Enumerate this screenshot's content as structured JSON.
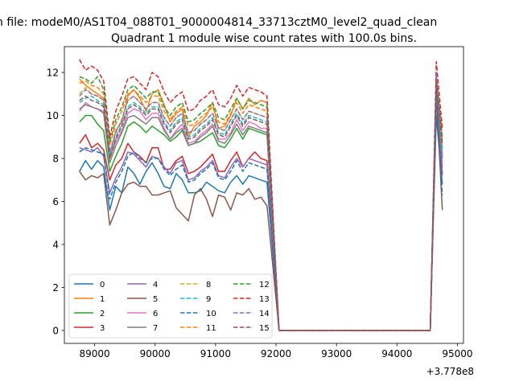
{
  "figure": {
    "suptitle": "n file: modeM0/AS1T04_088T01_9000004814_33713cztM0_level2_quad_clean",
    "offset_label": "+3.778e8"
  },
  "chart_data": {
    "type": "line",
    "title": "Quadrant 1 module wise count rates with 100.0s bins.",
    "xlabel": "",
    "ylabel": "",
    "xlim": [
      88500,
      95100
    ],
    "ylim": [
      -0.6,
      13.2
    ],
    "xticks": [
      89000,
      90000,
      91000,
      92000,
      93000,
      94000,
      95000
    ],
    "yticks": [
      0,
      2,
      4,
      6,
      8,
      10,
      12
    ],
    "grid": false,
    "legend_location": "lower-left",
    "legend_columns": 4,
    "x": [
      88750,
      88850,
      88950,
      89050,
      89150,
      89250,
      89350,
      89450,
      89550,
      89650,
      89750,
      89850,
      89950,
      90050,
      90150,
      90250,
      90350,
      90450,
      90550,
      90650,
      90750,
      90850,
      90950,
      91050,
      91150,
      91250,
      91350,
      91450,
      91550,
      91650,
      91750,
      91850,
      91950,
      92050,
      92150,
      92250,
      92350,
      92450,
      92550,
      92650,
      92750,
      92850,
      92950,
      93050,
      93150,
      93250,
      93350,
      93450,
      93550,
      93650,
      93750,
      93850,
      93950,
      94050,
      94150,
      94250,
      94350,
      94450,
      94550,
      94650,
      94750
    ],
    "series": [
      {
        "name": "0",
        "color": "#1f77b4",
        "dash": "solid",
        "values": [
          7.4,
          7.9,
          7.5,
          7.9,
          7.6,
          5.6,
          6.7,
          6.4,
          7.6,
          7.3,
          6.8,
          7.4,
          7.8,
          7.3,
          6.7,
          6.6,
          7.3,
          7.0,
          6.4,
          6.4,
          6.5,
          6.9,
          6.7,
          6.5,
          6.4,
          6.9,
          7.2,
          6.8,
          7.2,
          7.1,
          7.0,
          6.9,
          3.5,
          0,
          0,
          0,
          0,
          0,
          0,
          0,
          0,
          0,
          0,
          0,
          0,
          0,
          0,
          0,
          0,
          0,
          0,
          0,
          0,
          0,
          0,
          0,
          0,
          0,
          0,
          10.0,
          6.8
        ]
      },
      {
        "name": "1",
        "color": "#ff7f0e",
        "dash": "solid",
        "values": [
          11.7,
          11.4,
          11.2,
          11.0,
          10.8,
          8.2,
          9.3,
          9.7,
          10.9,
          11.2,
          10.8,
          10.2,
          11.0,
          11.2,
          10.5,
          9.7,
          10.1,
          10.3,
          9.0,
          9.5,
          9.7,
          10.0,
          10.6,
          9.4,
          9.5,
          10.0,
          10.8,
          10.3,
          10.8,
          10.5,
          10.7,
          10.6,
          5.0,
          0,
          0,
          0,
          0,
          0,
          0,
          0,
          0,
          0,
          0,
          0,
          0,
          0,
          0,
          0,
          0,
          0,
          0,
          0,
          0,
          0,
          0,
          0,
          0,
          0,
          0,
          11.6,
          8.5
        ]
      },
      {
        "name": "2",
        "color": "#2ca02c",
        "dash": "solid",
        "values": [
          9.7,
          10.0,
          10.0,
          9.6,
          9.3,
          7.4,
          8.1,
          8.7,
          9.5,
          9.7,
          9.5,
          9.2,
          9.5,
          9.3,
          9.1,
          8.8,
          9.0,
          9.3,
          8.6,
          8.7,
          8.8,
          9.0,
          9.2,
          8.6,
          8.5,
          8.9,
          9.4,
          8.9,
          9.4,
          9.3,
          9.2,
          9.1,
          4.5,
          0,
          0,
          0,
          0,
          0,
          0,
          0,
          0,
          0,
          0,
          0,
          0,
          0,
          0,
          0,
          0,
          0,
          0,
          0,
          0,
          0,
          0,
          0,
          0,
          0,
          0,
          11.2,
          8.0
        ]
      },
      {
        "name": "3",
        "color": "#d62728",
        "dash": "solid",
        "values": [
          8.7,
          9.1,
          8.5,
          8.7,
          8.4,
          7.0,
          7.7,
          8.0,
          8.7,
          8.3,
          8.1,
          7.8,
          8.5,
          8.5,
          7.5,
          7.5,
          7.9,
          8.1,
          7.3,
          7.4,
          7.6,
          7.9,
          8.2,
          7.4,
          7.4,
          7.9,
          8.3,
          7.6,
          8.0,
          8.3,
          8.0,
          7.9,
          3.9,
          0,
          0,
          0,
          0,
          0,
          0,
          0,
          0,
          0,
          0,
          0,
          0,
          0,
          0,
          0,
          0,
          0,
          0,
          0,
          0,
          0,
          0,
          0,
          0,
          0,
          0,
          11.0,
          7.3
        ]
      },
      {
        "name": "4",
        "color": "#9467bd",
        "dash": "solid",
        "values": [
          8.5,
          8.4,
          8.3,
          8.5,
          8.1,
          6.4,
          7.1,
          7.6,
          8.3,
          8.2,
          7.9,
          7.6,
          8.1,
          8.0,
          7.6,
          7.3,
          7.8,
          7.9,
          7.0,
          7.1,
          7.4,
          7.6,
          7.9,
          7.2,
          7.1,
          7.6,
          8.0,
          7.6,
          8.0,
          7.9,
          7.8,
          7.7,
          3.8,
          0,
          0,
          0,
          0,
          0,
          0,
          0,
          0,
          0,
          0,
          0,
          0,
          0,
          0,
          0,
          0,
          0,
          0,
          0,
          0,
          0,
          0,
          0,
          0,
          0,
          0,
          11.4,
          7.6
        ]
      },
      {
        "name": "5",
        "color": "#8c564b",
        "dash": "solid",
        "values": [
          7.4,
          7.0,
          7.2,
          7.1,
          7.3,
          4.9,
          5.6,
          6.4,
          6.8,
          6.9,
          6.7,
          6.7,
          6.3,
          6.3,
          6.4,
          6.5,
          5.7,
          5.4,
          5.1,
          6.3,
          6.6,
          6.1,
          5.3,
          6.3,
          6.2,
          5.6,
          6.4,
          6.3,
          6.6,
          6.1,
          6.2,
          5.8,
          2.9,
          0,
          0,
          0,
          0,
          0,
          0,
          0,
          0,
          0,
          0,
          0,
          0,
          0,
          0,
          0,
          0,
          0,
          0,
          0,
          0,
          0,
          0,
          0,
          0,
          0,
          0,
          11.0,
          5.6
        ]
      },
      {
        "name": "6",
        "color": "#e377c2",
        "dash": "solid",
        "values": [
          10.2,
          10.6,
          10.4,
          10.3,
          10.2,
          8.0,
          8.8,
          9.3,
          10.1,
          10.3,
          10.2,
          9.8,
          10.1,
          10.1,
          9.4,
          8.9,
          9.3,
          9.6,
          8.7,
          8.8,
          9.1,
          9.3,
          9.6,
          8.9,
          8.9,
          9.2,
          9.8,
          9.3,
          9.7,
          9.6,
          9.4,
          9.4,
          4.6,
          0,
          0,
          0,
          0,
          0,
          0,
          0,
          0,
          0,
          0,
          0,
          0,
          0,
          0,
          0,
          0,
          0,
          0,
          0,
          0,
          0,
          0,
          0,
          0,
          0,
          0,
          11.3,
          8.2
        ]
      },
      {
        "name": "7",
        "color": "#7f7f7f",
        "dash": "solid",
        "values": [
          10.3,
          10.5,
          10.4,
          10.3,
          10.1,
          7.8,
          8.6,
          9.2,
          9.9,
          10.0,
          9.8,
          9.6,
          9.9,
          9.9,
          9.3,
          8.9,
          9.2,
          9.4,
          8.6,
          8.7,
          9.0,
          9.2,
          9.5,
          8.8,
          8.7,
          9.1,
          9.6,
          9.1,
          9.5,
          9.4,
          9.3,
          9.2,
          4.6,
          0,
          0,
          0,
          0,
          0,
          0,
          0,
          0,
          0,
          0,
          0,
          0,
          0,
          0,
          0,
          0,
          0,
          0,
          0,
          0,
          0,
          0,
          0,
          0,
          0,
          0,
          11.2,
          8.1
        ]
      },
      {
        "name": "8",
        "color": "#bcbd22",
        "dash": "dashed",
        "values": [
          11.0,
          11.3,
          11.0,
          10.9,
          10.7,
          8.3,
          9.2,
          9.8,
          10.7,
          10.9,
          10.6,
          10.3,
          10.6,
          10.6,
          9.9,
          9.5,
          9.9,
          10.1,
          9.2,
          9.3,
          9.6,
          9.8,
          10.1,
          9.4,
          9.3,
          9.8,
          10.3,
          9.8,
          10.2,
          10.1,
          10.0,
          9.9,
          4.9,
          0,
          0,
          0,
          0,
          0,
          0,
          0,
          0,
          0,
          0,
          0,
          0,
          0,
          0,
          0,
          0,
          0,
          0,
          0,
          0,
          0,
          0,
          0,
          0,
          0,
          0,
          11.5,
          8.6
        ]
      },
      {
        "name": "9",
        "color": "#17becf",
        "dash": "dashed",
        "values": [
          10.6,
          10.8,
          10.9,
          10.7,
          10.5,
          8.1,
          9.0,
          9.6,
          10.4,
          10.6,
          10.4,
          10.1,
          10.4,
          10.4,
          9.7,
          9.3,
          9.7,
          9.9,
          9.0,
          9.1,
          9.4,
          9.6,
          9.9,
          9.2,
          9.1,
          9.6,
          10.1,
          9.6,
          10.0,
          9.9,
          9.8,
          9.7,
          4.8,
          0,
          0,
          0,
          0,
          0,
          0,
          0,
          0,
          0,
          0,
          0,
          0,
          0,
          0,
          0,
          0,
          0,
          0,
          0,
          0,
          0,
          0,
          0,
          0,
          0,
          0,
          11.4,
          8.4
        ]
      },
      {
        "name": "10",
        "color": "#1f77b4",
        "dash": "dashed",
        "values": [
          8.3,
          8.5,
          8.4,
          8.3,
          8.2,
          6.1,
          6.9,
          7.4,
          8.1,
          8.3,
          8.0,
          7.8,
          8.0,
          8.0,
          7.5,
          7.2,
          7.5,
          7.7,
          6.9,
          7.0,
          7.3,
          7.5,
          7.8,
          7.1,
          7.0,
          7.4,
          7.9,
          7.4,
          7.8,
          7.7,
          7.6,
          7.5,
          3.7,
          0,
          0,
          0,
          0,
          0,
          0,
          0,
          0,
          0,
          0,
          0,
          0,
          0,
          0,
          0,
          0,
          0,
          0,
          0,
          0,
          0,
          0,
          0,
          0,
          0,
          0,
          11.1,
          6.3
        ]
      },
      {
        "name": "11",
        "color": "#ff7f0e",
        "dash": "dashed",
        "values": [
          11.5,
          11.6,
          11.4,
          11.3,
          11.0,
          8.6,
          9.6,
          10.2,
          11.0,
          11.2,
          10.9,
          10.6,
          10.9,
          10.9,
          10.2,
          9.8,
          10.2,
          10.4,
          9.5,
          9.6,
          9.9,
          10.1,
          10.4,
          9.7,
          9.6,
          10.1,
          10.6,
          10.1,
          10.5,
          10.4,
          10.3,
          10.2,
          5.1,
          0,
          0,
          0,
          0,
          0,
          0,
          0,
          0,
          0,
          0,
          0,
          0,
          0,
          0,
          0,
          0,
          0,
          0,
          0,
          0,
          0,
          0,
          0,
          0,
          0,
          0,
          11.7,
          8.8
        ]
      },
      {
        "name": "12",
        "color": "#2ca02c",
        "dash": "dashed",
        "values": [
          11.8,
          11.7,
          11.5,
          11.8,
          11.2,
          8.8,
          9.8,
          10.4,
          11.2,
          11.4,
          11.1,
          10.8,
          11.1,
          11.1,
          10.4,
          10.0,
          10.4,
          10.6,
          9.7,
          9.8,
          10.1,
          10.3,
          10.6,
          9.9,
          9.8,
          10.3,
          10.8,
          10.3,
          10.7,
          10.6,
          10.5,
          10.4,
          5.2,
          0,
          0,
          0,
          0,
          0,
          0,
          0,
          0,
          0,
          0,
          0,
          0,
          0,
          0,
          0,
          0,
          0,
          0,
          0,
          0,
          0,
          0,
          0,
          0,
          0,
          0,
          11.8,
          9.0
        ]
      },
      {
        "name": "13",
        "color": "#d62728",
        "dash": "dashed",
        "values": [
          12.6,
          12.1,
          12.3,
          12.1,
          11.6,
          9.0,
          10.2,
          10.9,
          11.7,
          11.8,
          11.5,
          11.2,
          12.0,
          11.8,
          11.1,
          10.6,
          10.9,
          11.1,
          10.2,
          10.3,
          10.7,
          10.9,
          11.2,
          10.5,
          10.4,
          10.8,
          11.4,
          10.9,
          11.3,
          11.2,
          11.1,
          10.9,
          5.4,
          0,
          0,
          0,
          0,
          0,
          0,
          0,
          0,
          0,
          0,
          0,
          0,
          0,
          0,
          0,
          0,
          0,
          0,
          0,
          0,
          0,
          0,
          0,
          0,
          0,
          0,
          12.5,
          9.4
        ]
      },
      {
        "name": "14",
        "color": "#9467bd",
        "dash": "dashed",
        "values": [
          10.9,
          11.2,
          11.0,
          10.9,
          10.7,
          8.3,
          9.2,
          9.8,
          10.7,
          10.9,
          10.6,
          10.3,
          10.6,
          10.6,
          9.9,
          9.5,
          9.9,
          10.1,
          9.2,
          9.3,
          9.6,
          9.8,
          10.1,
          9.4,
          9.3,
          9.8,
          10.3,
          9.8,
          10.2,
          10.1,
          10.0,
          9.9,
          4.9,
          0,
          0,
          0,
          0,
          0,
          0,
          0,
          0,
          0,
          0,
          0,
          0,
          0,
          0,
          0,
          0,
          0,
          0,
          0,
          0,
          0,
          0,
          0,
          0,
          0,
          0,
          12.0,
          7.2
        ]
      },
      {
        "name": "15",
        "color": "#8c564b",
        "dash": "dashed",
        "values": [
          10.7,
          10.9,
          10.7,
          10.6,
          10.4,
          8.0,
          8.9,
          9.5,
          10.3,
          10.5,
          10.3,
          10.0,
          10.3,
          10.3,
          9.6,
          9.2,
          9.6,
          9.8,
          8.9,
          9.0,
          9.3,
          9.5,
          9.8,
          9.1,
          9.0,
          9.5,
          10.0,
          9.5,
          9.9,
          9.8,
          9.7,
          9.6,
          4.8,
          0,
          0,
          0,
          0,
          0,
          0,
          0,
          0,
          0,
          0,
          0,
          0,
          0,
          0,
          0,
          0,
          0,
          0,
          0,
          0,
          0,
          0,
          0,
          0,
          0,
          0,
          11.6,
          8.7
        ]
      }
    ]
  }
}
